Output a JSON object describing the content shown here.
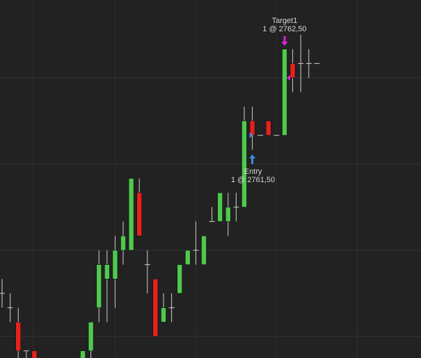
{
  "chart_data": {
    "type": "candlestick",
    "up_color": "#4fc94f",
    "down_color": "#e8211f",
    "grid": true,
    "ylim": [
      2757.625,
      2763.855
    ],
    "yticks": [
      2758,
      2759.5,
      2761,
      2762.5
    ],
    "xlim": [
      -0.26,
      51.9
    ],
    "xticks": [
      3.88,
      14,
      24,
      34,
      44
    ],
    "x": [
      0,
      1,
      2,
      3,
      4,
      10,
      11,
      12,
      13,
      14,
      15,
      16,
      17,
      18,
      19,
      20,
      21,
      22,
      23,
      24,
      25,
      26,
      27,
      28,
      29,
      30,
      31,
      32,
      33,
      34,
      35,
      36,
      37,
      38,
      39
    ],
    "open": [
      2758.75,
      2758.5,
      2758.25,
      2757.75,
      2757.75,
      2757.5,
      2757.75,
      2758.5,
      2759,
      2759,
      2759.5,
      2759.5,
      2760.5,
      2759.25,
      2759,
      2758.25,
      2758.5,
      2758.75,
      2759.25,
      2759.5,
      2759.25,
      2760,
      2760,
      2760,
      2760.25,
      2760.25,
      2761.75,
      2761.5,
      2761.75,
      2761.5,
      2761.5,
      2762.75,
      2762.75,
      2762.75,
      2762.75
    ],
    "high": [
      2759,
      2758.75,
      2758.5,
      2757.75,
      2757.75,
      2757.75,
      2758.25,
      2759.5,
      2759.5,
      2759.75,
      2760,
      2760.75,
      2760.75,
      2759.5,
      2759,
      2758.75,
      2758.75,
      2759.25,
      2759.5,
      2760,
      2759.75,
      2760.25,
      2760.5,
      2760.5,
      2760.5,
      2762,
      2762,
      2761.5,
      2761.75,
      2761.5,
      2763,
      2763,
      2763.25,
      2763,
      2762.75
    ],
    "low": [
      2758.5,
      2758.25,
      2757.5,
      2757.5,
      2757.5,
      2757.5,
      2757.5,
      2758.25,
      2758.25,
      2758.5,
      2759.25,
      2759.5,
      2759.75,
      2758.75,
      2758,
      2758.25,
      2758.25,
      2758.75,
      2759.25,
      2759.25,
      2759.25,
      2760,
      2760,
      2759.75,
      2760,
      2760.25,
      2761.25,
      2761.5,
      2761.5,
      2761.5,
      2761.5,
      2762.25,
      2762.25,
      2762.5,
      2762.75
    ],
    "close": [
      2758.75,
      2758.5,
      2757.75,
      2757.75,
      2757.5,
      2757.75,
      2758.25,
      2759.25,
      2759.25,
      2759.5,
      2759.75,
      2760.75,
      2759.75,
      2759.25,
      2758,
      2758.5,
      2758.5,
      2759.25,
      2759.5,
      2759.5,
      2759.75,
      2760,
      2760.5,
      2760.25,
      2760.25,
      2761.75,
      2761.5,
      2761.5,
      2761.5,
      2761.5,
      2763,
      2762.5,
      2762.75,
      2762.75,
      2762.75
    ],
    "annotations": [
      {
        "text": "Target1",
        "detail": "1 @ 2762,50",
        "price": 2762.5,
        "x": 35,
        "side": "sell",
        "color": "#e020e0"
      },
      {
        "text": "Entry",
        "detail": "1 @ 2761,50",
        "price": 2761.5,
        "x": 31,
        "side": "buy",
        "color": "#3a8ee8"
      }
    ]
  }
}
